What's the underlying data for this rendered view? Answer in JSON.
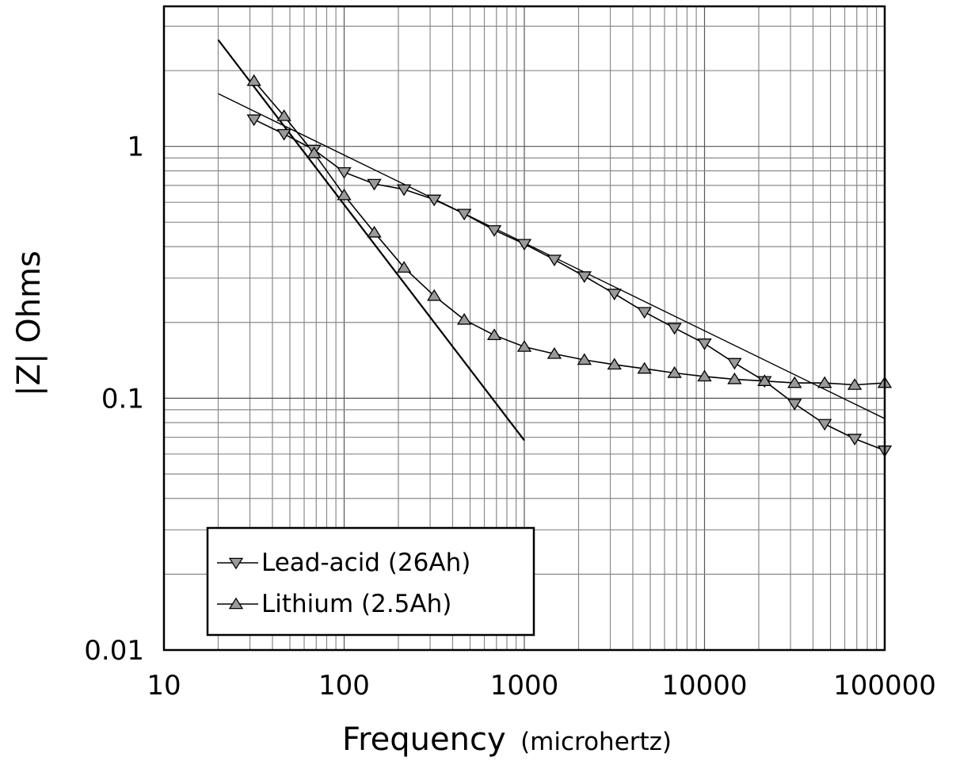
{
  "chart_data": {
    "type": "line",
    "xlabel": "Frequency",
    "xlabel_unit": "(microhertz)",
    "ylabel": "|Z| Ohms",
    "x_scale": "log",
    "y_scale": "log",
    "xlim": [
      10,
      100000
    ],
    "ylim": [
      0.01,
      3.6
    ],
    "x_ticks": [
      {
        "value": 10,
        "label": "10"
      },
      {
        "value": 100,
        "label": "100"
      },
      {
        "value": 1000,
        "label": "1000"
      },
      {
        "value": 10000,
        "label": "10000"
      },
      {
        "value": 100000,
        "label": "100000"
      }
    ],
    "y_ticks": [
      {
        "value": 0.01,
        "label": "0.01"
      },
      {
        "value": 0.1,
        "label": "0.1"
      },
      {
        "value": 1,
        "label": "1"
      }
    ],
    "grid": true,
    "legend_position": "bottom-left",
    "series": [
      {
        "name": "Lead-acid (26Ah)",
        "marker": "triangle-down",
        "x": [
          31.6,
          46.4,
          68.1,
          100,
          147,
          215,
          316,
          464,
          681,
          1000,
          1468,
          2154,
          3162,
          4642,
          6813,
          10000,
          14678,
          21544,
          31623,
          46416,
          68129,
          100000
        ],
        "y": [
          1.28,
          1.12,
          0.97,
          0.79,
          0.71,
          0.675,
          0.615,
          0.54,
          0.465,
          0.41,
          0.355,
          0.305,
          0.26,
          0.22,
          0.19,
          0.165,
          0.138,
          0.117,
          0.095,
          0.079,
          0.069,
          0.062
        ]
      },
      {
        "name": "Lithium (2.5Ah)",
        "marker": "triangle-up",
        "x": [
          31.6,
          46.4,
          68.1,
          100,
          147,
          215,
          316,
          464,
          681,
          1000,
          1468,
          2154,
          3162,
          4642,
          6813,
          10000,
          14678,
          21544,
          31623,
          46416,
          68129,
          100000
        ],
        "y": [
          1.82,
          1.32,
          0.94,
          0.64,
          0.455,
          0.33,
          0.255,
          0.205,
          0.178,
          0.16,
          0.15,
          0.142,
          0.136,
          0.131,
          0.126,
          0.122,
          0.119,
          0.117,
          0.115,
          0.115,
          0.113,
          0.115
        ]
      }
    ],
    "fit_lines": [
      {
        "x": [
          20,
          100000
        ],
        "y": [
          1.62,
          0.083
        ]
      },
      {
        "x": [
          20,
          1000
        ],
        "y": [
          2.65,
          0.068
        ]
      }
    ]
  }
}
